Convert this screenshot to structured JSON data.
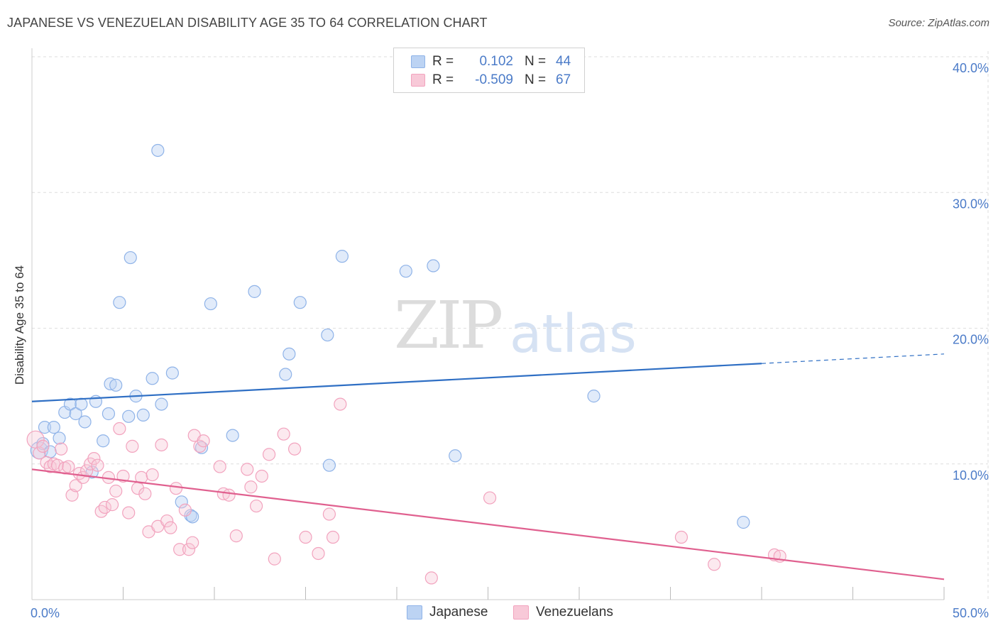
{
  "chart_data": {
    "type": "scatter",
    "title": "JAPANESE VS VENEZUELAN DISABILITY AGE 35 TO 64 CORRELATION CHART",
    "source": "Source: ZipAtlas.com",
    "ylabel": "Disability Age 35 to 64",
    "xlabel": "",
    "xlim": [
      0,
      50
    ],
    "ylim": [
      0,
      40
    ],
    "x_tick_labels": [
      "0.0%",
      "50.0%"
    ],
    "y_ticks": [
      10,
      20,
      30,
      40
    ],
    "y_tick_labels": [
      "10.0%",
      "20.0%",
      "30.0%",
      "40.0%"
    ],
    "grid": true,
    "watermark": "ZIPatlas",
    "legend": [
      {
        "r_label": "R =",
        "r_value": "0.102",
        "n_label": "N =",
        "n_value": "44"
      },
      {
        "r_label": "R =",
        "r_value": "-0.509",
        "n_label": "N =",
        "n_value": "67"
      }
    ],
    "series": [
      {
        "name": "Japanese",
        "color": "#8fb3e8",
        "line_color": "#2f6fc4",
        "trend": {
          "x0": 0,
          "y0": 14.6,
          "x1": 40,
          "y1": 17.4,
          "dash_x1": 50,
          "dash_y1": 18.1
        },
        "points": [
          [
            0.4,
            11.0
          ],
          [
            0.6,
            11.5
          ],
          [
            0.7,
            12.7
          ],
          [
            1.0,
            10.9
          ],
          [
            1.2,
            12.7
          ],
          [
            1.5,
            11.9
          ],
          [
            1.8,
            13.8
          ],
          [
            2.1,
            14.4
          ],
          [
            2.4,
            13.7
          ],
          [
            2.7,
            14.4
          ],
          [
            2.9,
            13.1
          ],
          [
            3.3,
            9.4
          ],
          [
            3.5,
            14.6
          ],
          [
            3.9,
            11.7
          ],
          [
            4.2,
            13.7
          ],
          [
            4.3,
            15.9
          ],
          [
            4.6,
            15.8
          ],
          [
            4.8,
            21.9
          ],
          [
            5.3,
            13.5
          ],
          [
            5.4,
            25.2
          ],
          [
            5.7,
            15.0
          ],
          [
            6.1,
            13.6
          ],
          [
            6.6,
            16.3
          ],
          [
            6.9,
            33.1
          ],
          [
            7.1,
            14.4
          ],
          [
            7.7,
            16.7
          ],
          [
            8.2,
            7.2
          ],
          [
            8.7,
            6.2
          ],
          [
            8.8,
            6.1
          ],
          [
            9.3,
            11.2
          ],
          [
            9.8,
            21.8
          ],
          [
            11.0,
            12.1
          ],
          [
            12.2,
            22.7
          ],
          [
            13.9,
            16.6
          ],
          [
            14.1,
            18.1
          ],
          [
            14.7,
            21.9
          ],
          [
            16.2,
            19.5
          ],
          [
            16.3,
            9.9
          ],
          [
            17.0,
            25.3
          ],
          [
            20.5,
            24.2
          ],
          [
            22.0,
            24.6
          ],
          [
            23.2,
            10.6
          ],
          [
            30.8,
            15.0
          ],
          [
            39.0,
            5.7
          ]
        ]
      },
      {
        "name": "Venezuelans",
        "color": "#f2a3be",
        "line_color": "#e0608f",
        "trend": {
          "x0": 0,
          "y0": 9.6,
          "x1": 50,
          "y1": 1.5
        },
        "points": [
          [
            0.2,
            11.8
          ],
          [
            0.4,
            10.8
          ],
          [
            0.6,
            11.3
          ],
          [
            0.8,
            10.1
          ],
          [
            1.0,
            9.8
          ],
          [
            1.2,
            10.0
          ],
          [
            1.4,
            9.9
          ],
          [
            1.6,
            11.1
          ],
          [
            1.8,
            9.7
          ],
          [
            2.0,
            9.8
          ],
          [
            2.2,
            7.7
          ],
          [
            2.4,
            8.4
          ],
          [
            2.6,
            9.3
          ],
          [
            2.8,
            9.0
          ],
          [
            3.0,
            9.5
          ],
          [
            3.2,
            10.0
          ],
          [
            3.4,
            10.4
          ],
          [
            3.6,
            9.9
          ],
          [
            3.8,
            6.5
          ],
          [
            4.0,
            6.8
          ],
          [
            4.2,
            9.0
          ],
          [
            4.4,
            7.0
          ],
          [
            4.6,
            8.0
          ],
          [
            4.8,
            12.6
          ],
          [
            5.0,
            9.1
          ],
          [
            5.3,
            6.4
          ],
          [
            5.5,
            11.3
          ],
          [
            5.8,
            8.2
          ],
          [
            6.0,
            9.0
          ],
          [
            6.2,
            7.8
          ],
          [
            6.4,
            5.0
          ],
          [
            6.6,
            9.2
          ],
          [
            6.9,
            5.4
          ],
          [
            7.1,
            11.4
          ],
          [
            7.4,
            5.8
          ],
          [
            7.6,
            5.3
          ],
          [
            7.9,
            8.2
          ],
          [
            8.1,
            3.7
          ],
          [
            8.4,
            6.6
          ],
          [
            8.6,
            3.7
          ],
          [
            8.8,
            4.2
          ],
          [
            8.9,
            12.1
          ],
          [
            9.2,
            11.3
          ],
          [
            9.4,
            11.7
          ],
          [
            10.3,
            9.8
          ],
          [
            10.5,
            7.8
          ],
          [
            10.8,
            7.7
          ],
          [
            11.2,
            4.7
          ],
          [
            11.8,
            9.6
          ],
          [
            12.0,
            8.3
          ],
          [
            12.3,
            6.9
          ],
          [
            12.6,
            9.1
          ],
          [
            13.0,
            10.7
          ],
          [
            13.3,
            3.0
          ],
          [
            13.8,
            12.2
          ],
          [
            14.4,
            11.1
          ],
          [
            15.0,
            4.6
          ],
          [
            15.7,
            3.4
          ],
          [
            16.3,
            6.3
          ],
          [
            16.5,
            4.6
          ],
          [
            16.9,
            14.4
          ],
          [
            21.9,
            1.6
          ],
          [
            25.1,
            7.5
          ],
          [
            35.6,
            4.6
          ],
          [
            37.4,
            2.6
          ],
          [
            40.7,
            3.3
          ],
          [
            41.0,
            3.2
          ]
        ]
      }
    ]
  }
}
